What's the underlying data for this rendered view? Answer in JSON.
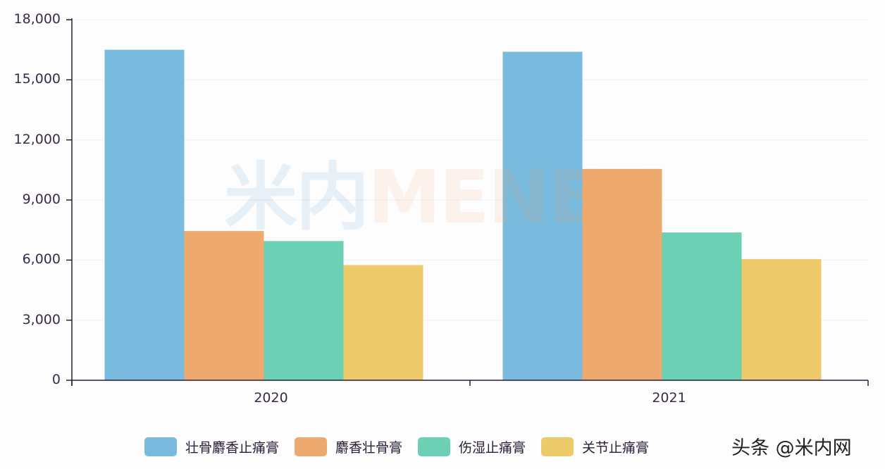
{
  "chart_data": {
    "type": "bar",
    "title": "",
    "xlabel": "",
    "ylabel": "",
    "categories": [
      "2020",
      "2021"
    ],
    "series": [
      {
        "name": "壮骨麝香止痛膏",
        "color": "#78bbdf",
        "values": [
          16500,
          16400
        ]
      },
      {
        "name": "麝香壮骨膏",
        "color": "#eda96e",
        "values": [
          7450,
          10550
        ]
      },
      {
        "name": "伤湿止痛膏",
        "color": "#6cd1b4",
        "values": [
          6950,
          7380
        ]
      },
      {
        "name": "关节止痛膏",
        "color": "#eecb6a",
        "values": [
          5750,
          6050
        ]
      }
    ],
    "ylim": [
      0,
      18000
    ],
    "yticks": [
      0,
      3000,
      6000,
      9000,
      12000,
      15000,
      18000
    ],
    "ytick_labels": [
      "0",
      "3,000",
      "6,000",
      "9,000",
      "12,000",
      "15,000",
      "18,000"
    ],
    "grid": true,
    "legend_position": "bottom"
  },
  "watermark": {
    "cn": "米内",
    "en": "MENET"
  },
  "credit": "头条 @米内网"
}
